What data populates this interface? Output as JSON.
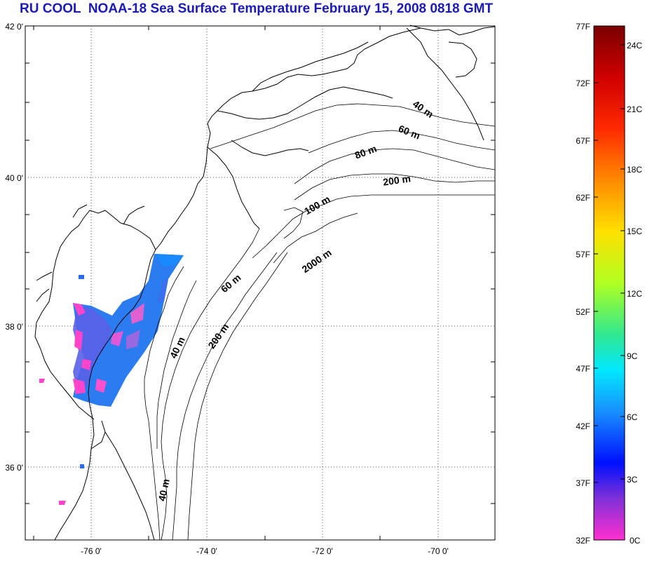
{
  "title": "RU COOL  NOAA-18 Sea Surface Temperature February 15, 2008 0818 GMT",
  "axes": {
    "lat_labels": [
      "42 0'",
      "40 0'",
      "38 0'",
      "36 0'"
    ],
    "lon_labels": [
      "-76 0'",
      "-74 0'",
      "-72 0'",
      "-70 0'"
    ]
  },
  "isobaths": [
    {
      "label": "40 m"
    },
    {
      "label": "60 m"
    },
    {
      "label": "80 m"
    },
    {
      "label": "200 m"
    },
    {
      "label": "100 m"
    },
    {
      "label": "2000 m"
    },
    {
      "label": "60 m"
    },
    {
      "label": "200 m"
    },
    {
      "label": "40 m"
    },
    {
      "label": "40 m"
    }
  ],
  "colorbar": {
    "f_labels": [
      "77F",
      "72F",
      "67F",
      "62F",
      "57F",
      "52F",
      "47F",
      "42F",
      "37F",
      "32F"
    ],
    "c_labels": [
      "24C",
      "21C",
      "18C",
      "15C",
      "12C",
      "9C",
      "6C",
      "3C",
      "0C"
    ],
    "colors": [
      "#8b0000",
      "#d00000",
      "#ff2000",
      "#ff8000",
      "#ffd000",
      "#e0ff00",
      "#80ff40",
      "#20e0a0",
      "#00e0ff",
      "#2090ff",
      "#0020ff",
      "#8030e0",
      "#ff30d0"
    ]
  }
}
